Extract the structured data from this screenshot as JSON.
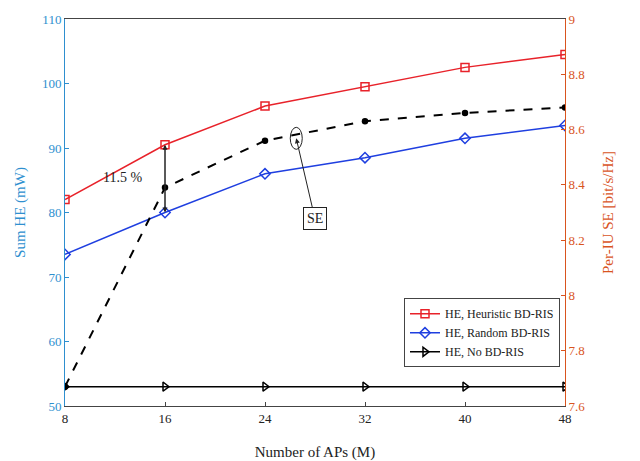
{
  "chart_data": {
    "type": "line",
    "xlabel": "Number of APs (M)",
    "ylabel": "Sum HE (mW)",
    "y2label": "Per-IU SE [bit/s/Hz]",
    "x": [
      8,
      16,
      24,
      32,
      40,
      48
    ],
    "xlim": [
      8,
      48
    ],
    "xticks": [
      8,
      16,
      24,
      32,
      40,
      48
    ],
    "ylim": [
      50,
      110
    ],
    "yticks": [
      50,
      60,
      70,
      80,
      90,
      100,
      110
    ],
    "y2lim": [
      7.6,
      9
    ],
    "y2ticks": [
      7.6,
      7.8,
      8,
      8.2,
      8.4,
      8.6,
      8.8,
      9
    ],
    "grid": false,
    "legend": "bottom right",
    "series": [
      {
        "name": "HE, Heuristic BD-RIS",
        "color": "#e8222a",
        "marker": "square",
        "line_style": "solid",
        "values": [
          82,
          90.5,
          96.5,
          99.5,
          102.5,
          104.5
        ]
      },
      {
        "name": "HE, Random BD-RIS",
        "color": "#1f3fe0",
        "marker": "diamond",
        "line_style": "solid",
        "values": [
          73.5,
          80,
          86,
          88.5,
          91.5,
          93.5
        ]
      },
      {
        "name": "HE, No BD-RIS",
        "color": "#000000",
        "marker": "triangle-right",
        "line_style": "solid",
        "values": [
          53,
          53,
          53,
          53,
          53,
          53
        ]
      },
      {
        "axis": "y2",
        "color": "#000000",
        "marker": "dot",
        "line_style": "dashed",
        "values": [
          7.67,
          8.39,
          8.56,
          8.63,
          8.66,
          8.68
        ]
      }
    ],
    "annotations": [
      {
        "text": "11.5 %",
        "x": 12.6,
        "y": 85.5
      },
      {
        "text": "SE",
        "x": 28,
        "y": 79,
        "ax": 26.5,
        "ay": 91.5
      }
    ]
  }
}
